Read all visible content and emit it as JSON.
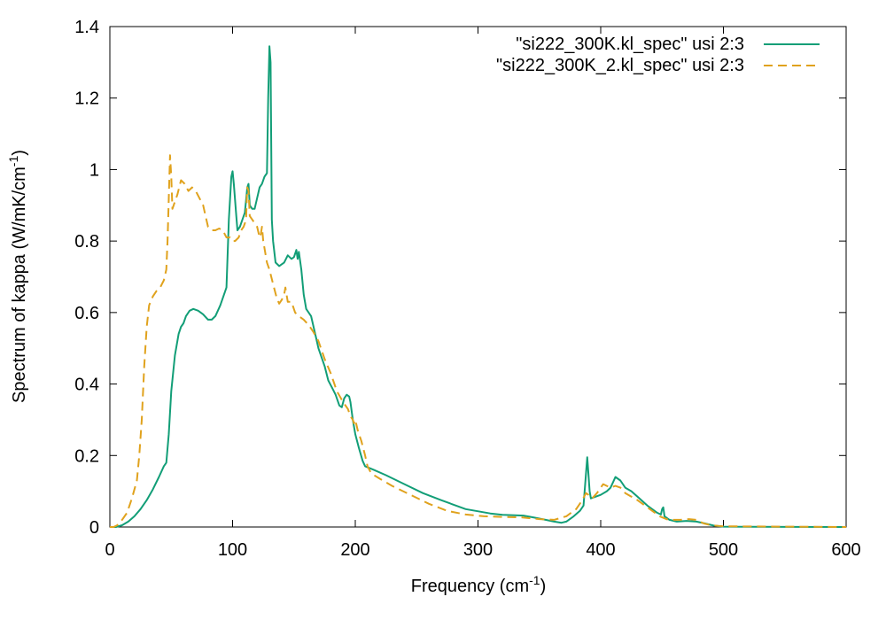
{
  "chart_data": {
    "type": "line",
    "xlabel": "Frequency (cm",
    "xlabel_sup": "-1",
    "xlabel_end": ")",
    "ylabel": "Spectrum of kappa (W/mK/cm",
    "ylabel_sup": "-1",
    "ylabel_end": ")",
    "xlim": [
      0,
      600
    ],
    "ylim": [
      0,
      1.4
    ],
    "xticks": [
      0,
      100,
      200,
      300,
      400,
      500,
      600
    ],
    "xtick_labels": [
      "0",
      "100",
      "200",
      "300",
      "400",
      "500",
      "600"
    ],
    "yticks": [
      0,
      0.2,
      0.4,
      0.6,
      0.8,
      1.0,
      1.2,
      1.4
    ],
    "ytick_labels": [
      "0",
      "0.2",
      "0.4",
      "0.6",
      "0.8",
      "1",
      "1.2",
      "1.4"
    ],
    "grid": false,
    "legend_position": "top-right",
    "series": [
      {
        "name": "\"si222_300K.kl_spec\" usi 2:3",
        "color": "#129e77",
        "dash": "solid",
        "points": [
          [
            0,
            0
          ],
          [
            5,
            0
          ],
          [
            10,
            0.005
          ],
          [
            15,
            0.015
          ],
          [
            20,
            0.03
          ],
          [
            25,
            0.05
          ],
          [
            30,
            0.075
          ],
          [
            35,
            0.105
          ],
          [
            40,
            0.14
          ],
          [
            44,
            0.17
          ],
          [
            46,
            0.18
          ],
          [
            48,
            0.26
          ],
          [
            50,
            0.38
          ],
          [
            53,
            0.48
          ],
          [
            56,
            0.54
          ],
          [
            58,
            0.56
          ],
          [
            60,
            0.57
          ],
          [
            62,
            0.59
          ],
          [
            65,
            0.605
          ],
          [
            68,
            0.61
          ],
          [
            72,
            0.605
          ],
          [
            76,
            0.595
          ],
          [
            80,
            0.58
          ],
          [
            83,
            0.58
          ],
          [
            86,
            0.59
          ],
          [
            90,
            0.62
          ],
          [
            93,
            0.65
          ],
          [
            95,
            0.67
          ],
          [
            97,
            0.86
          ],
          [
            99,
            0.98
          ],
          [
            100,
            0.995
          ],
          [
            101,
            0.96
          ],
          [
            103,
            0.87
          ],
          [
            104,
            0.83
          ],
          [
            106,
            0.84
          ],
          [
            108,
            0.86
          ],
          [
            110,
            0.88
          ],
          [
            112,
            0.95
          ],
          [
            113,
            0.96
          ],
          [
            114,
            0.9
          ],
          [
            116,
            0.89
          ],
          [
            118,
            0.89
          ],
          [
            120,
            0.92
          ],
          [
            122,
            0.95
          ],
          [
            124,
            0.96
          ],
          [
            126,
            0.98
          ],
          [
            128,
            0.99
          ],
          [
            129,
            1.2
          ],
          [
            130,
            1.345
          ],
          [
            131,
            1.3
          ],
          [
            132,
            0.86
          ],
          [
            133,
            0.8
          ],
          [
            135,
            0.74
          ],
          [
            138,
            0.73
          ],
          [
            142,
            0.74
          ],
          [
            145,
            0.76
          ],
          [
            148,
            0.75
          ],
          [
            150,
            0.755
          ],
          [
            152,
            0.775
          ],
          [
            153,
            0.75
          ],
          [
            154,
            0.77
          ],
          [
            156,
            0.72
          ],
          [
            158,
            0.65
          ],
          [
            160,
            0.61
          ],
          [
            162,
            0.6
          ],
          [
            164,
            0.59
          ],
          [
            166,
            0.56
          ],
          [
            168,
            0.53
          ],
          [
            170,
            0.5
          ],
          [
            172,
            0.48
          ],
          [
            175,
            0.45
          ],
          [
            178,
            0.41
          ],
          [
            181,
            0.39
          ],
          [
            184,
            0.37
          ],
          [
            187,
            0.34
          ],
          [
            189,
            0.335
          ],
          [
            191,
            0.36
          ],
          [
            193,
            0.37
          ],
          [
            195,
            0.365
          ],
          [
            196,
            0.35
          ],
          [
            198,
            0.3
          ],
          [
            200,
            0.26
          ],
          [
            203,
            0.22
          ],
          [
            206,
            0.185
          ],
          [
            208,
            0.17
          ],
          [
            215,
            0.16
          ],
          [
            225,
            0.145
          ],
          [
            240,
            0.12
          ],
          [
            255,
            0.095
          ],
          [
            270,
            0.075
          ],
          [
            290,
            0.05
          ],
          [
            310,
            0.038
          ],
          [
            320,
            0.034
          ],
          [
            330,
            0.033
          ],
          [
            337,
            0.032
          ],
          [
            345,
            0.027
          ],
          [
            355,
            0.02
          ],
          [
            362,
            0.015
          ],
          [
            368,
            0.012
          ],
          [
            372,
            0.015
          ],
          [
            378,
            0.03
          ],
          [
            383,
            0.045
          ],
          [
            386,
            0.06
          ],
          [
            388,
            0.15
          ],
          [
            389,
            0.195
          ],
          [
            390,
            0.15
          ],
          [
            391,
            0.1
          ],
          [
            392,
            0.08
          ],
          [
            396,
            0.085
          ],
          [
            400,
            0.09
          ],
          [
            405,
            0.1
          ],
          [
            408,
            0.11
          ],
          [
            410,
            0.125
          ],
          [
            412,
            0.14
          ],
          [
            416,
            0.13
          ],
          [
            420,
            0.11
          ],
          [
            425,
            0.1
          ],
          [
            430,
            0.085
          ],
          [
            438,
            0.06
          ],
          [
            446,
            0.04
          ],
          [
            449,
            0.035
          ],
          [
            450,
            0.05
          ],
          [
            451,
            0.055
          ],
          [
            452,
            0.03
          ],
          [
            456,
            0.02
          ],
          [
            462,
            0.015
          ],
          [
            470,
            0.017
          ],
          [
            478,
            0.015
          ],
          [
            485,
            0.01
          ],
          [
            492,
            0.004
          ],
          [
            500,
            0.001
          ],
          [
            520,
            0.0005
          ],
          [
            600,
            0
          ]
        ]
      },
      {
        "name": "\"si222_300K_2.kl_spec\" usi 2:3",
        "color": "#e0a21d",
        "dash": "dashed",
        "points": [
          [
            0,
            0
          ],
          [
            3,
            0
          ],
          [
            6,
            0.005
          ],
          [
            10,
            0.02
          ],
          [
            14,
            0.04
          ],
          [
            18,
            0.08
          ],
          [
            22,
            0.13
          ],
          [
            24,
            0.2
          ],
          [
            26,
            0.3
          ],
          [
            28,
            0.45
          ],
          [
            30,
            0.56
          ],
          [
            32,
            0.62
          ],
          [
            35,
            0.645
          ],
          [
            38,
            0.66
          ],
          [
            41,
            0.67
          ],
          [
            44,
            0.69
          ],
          [
            46,
            0.72
          ],
          [
            47,
            0.8
          ],
          [
            48,
            0.92
          ],
          [
            49,
            1.04
          ],
          [
            50,
            0.98
          ],
          [
            51,
            0.89
          ],
          [
            52,
            0.9
          ],
          [
            55,
            0.93
          ],
          [
            58,
            0.97
          ],
          [
            61,
            0.96
          ],
          [
            64,
            0.94
          ],
          [
            67,
            0.95
          ],
          [
            70,
            0.94
          ],
          [
            73,
            0.92
          ],
          [
            76,
            0.9
          ],
          [
            78,
            0.87
          ],
          [
            80,
            0.84
          ],
          [
            83,
            0.83
          ],
          [
            86,
            0.83
          ],
          [
            89,
            0.835
          ],
          [
            92,
            0.83
          ],
          [
            95,
            0.81
          ],
          [
            98,
            0.81
          ],
          [
            100,
            0.8
          ],
          [
            102,
            0.8
          ],
          [
            105,
            0.81
          ],
          [
            107,
            0.83
          ],
          [
            109,
            0.84
          ],
          [
            110,
            0.85
          ],
          [
            111,
            0.86
          ],
          [
            112,
            0.95
          ],
          [
            113,
            0.94
          ],
          [
            114,
            0.87
          ],
          [
            116,
            0.86
          ],
          [
            118,
            0.85
          ],
          [
            120,
            0.84
          ],
          [
            122,
            0.81
          ],
          [
            123,
            0.82
          ],
          [
            124,
            0.84
          ],
          [
            125,
            0.8
          ],
          [
            126,
            0.78
          ],
          [
            128,
            0.74
          ],
          [
            130,
            0.72
          ],
          [
            133,
            0.68
          ],
          [
            136,
            0.64
          ],
          [
            138,
            0.625
          ],
          [
            140,
            0.635
          ],
          [
            142,
            0.65
          ],
          [
            143,
            0.67
          ],
          [
            145,
            0.63
          ],
          [
            148,
            0.63
          ],
          [
            151,
            0.6
          ],
          [
            154,
            0.59
          ],
          [
            158,
            0.58
          ],
          [
            162,
            0.565
          ],
          [
            166,
            0.545
          ],
          [
            170,
            0.52
          ],
          [
            175,
            0.47
          ],
          [
            180,
            0.43
          ],
          [
            185,
            0.38
          ],
          [
            190,
            0.35
          ],
          [
            194,
            0.33
          ],
          [
            196,
            0.31
          ],
          [
            198,
            0.3
          ],
          [
            199,
            0.29
          ],
          [
            200,
            0.3
          ],
          [
            201,
            0.285
          ],
          [
            202,
            0.27
          ],
          [
            205,
            0.24
          ],
          [
            208,
            0.2
          ],
          [
            210,
            0.17
          ],
          [
            213,
            0.15
          ],
          [
            220,
            0.135
          ],
          [
            230,
            0.115
          ],
          [
            245,
            0.09
          ],
          [
            260,
            0.065
          ],
          [
            275,
            0.045
          ],
          [
            290,
            0.035
          ],
          [
            305,
            0.03
          ],
          [
            320,
            0.028
          ],
          [
            335,
            0.027
          ],
          [
            350,
            0.022
          ],
          [
            362,
            0.02
          ],
          [
            372,
            0.03
          ],
          [
            380,
            0.05
          ],
          [
            385,
            0.075
          ],
          [
            388,
            0.095
          ],
          [
            390,
            0.09
          ],
          [
            393,
            0.08
          ],
          [
            397,
            0.095
          ],
          [
            400,
            0.11
          ],
          [
            402,
            0.12
          ],
          [
            405,
            0.115
          ],
          [
            408,
            0.11
          ],
          [
            412,
            0.115
          ],
          [
            416,
            0.11
          ],
          [
            420,
            0.095
          ],
          [
            425,
            0.085
          ],
          [
            430,
            0.075
          ],
          [
            436,
            0.06
          ],
          [
            442,
            0.045
          ],
          [
            448,
            0.03
          ],
          [
            455,
            0.02
          ],
          [
            465,
            0.02
          ],
          [
            472,
            0.022
          ],
          [
            478,
            0.02
          ],
          [
            484,
            0.01
          ],
          [
            490,
            0.005
          ],
          [
            500,
            0.002
          ],
          [
            600,
            0
          ]
        ]
      }
    ]
  }
}
